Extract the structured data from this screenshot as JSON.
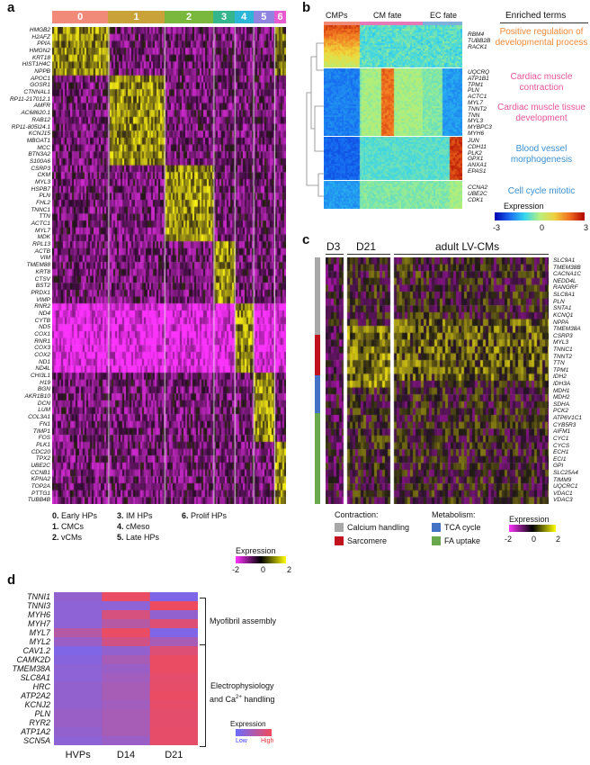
{
  "panels": {
    "a": "a",
    "b": "b",
    "c": "c",
    "d": "d"
  },
  "panel_a": {
    "clusters": [
      {
        "label": "0",
        "color": "#f28a7a"
      },
      {
        "label": "1",
        "color": "#c9a23a"
      },
      {
        "label": "2",
        "color": "#79b83c"
      },
      {
        "label": "3",
        "color": "#35b58c"
      },
      {
        "label": "4",
        "color": "#2bb6d8"
      },
      {
        "label": "5",
        "color": "#8f85e0"
      },
      {
        "label": "6",
        "color": "#e85ad0"
      }
    ],
    "genes": [
      "HMGB2",
      "H2AFZ",
      "PPIA",
      "HMGN2",
      "KRT18",
      "HIST1H4C",
      "NPPB",
      "APOC1",
      "GOSR1",
      "CTNNAL1",
      "RP11-217012.1",
      "AMFR",
      "AC68620.1",
      "RAB12",
      "RP11-805I24.1",
      "KCNJ15",
      "MBOAT1",
      "MCC",
      "BTN3A2",
      "S100A6",
      "CSRP3",
      "CKM",
      "MYL3",
      "HSPB7",
      "PLN",
      "FHL2",
      "TNNC1",
      "TTN",
      "ACTC1",
      "MYL7",
      "MDK",
      "RPL13",
      "ACTB",
      "VIM",
      "TMEM88",
      "KRT8",
      "CTSV",
      "BST2",
      "PRDX1",
      "VIMP",
      "RNR2",
      "ND4",
      "CYTB",
      "ND5",
      "COX1",
      "RNR1",
      "COX3",
      "COX2",
      "ND1",
      "ND4L",
      "CHI3L1",
      "H19",
      "BGN",
      "AKR1B10",
      "DCN",
      "LUM",
      "COL3A1",
      "FN1",
      "TIMP1",
      "FOS",
      "PLK1",
      "CDC20",
      "TPX2",
      "UBE2C",
      "CCNB1",
      "KPNA2",
      "TOP2A",
      "PTTG1",
      "TUBB4B"
    ],
    "legend": [
      [
        "0.",
        "Early HPs"
      ],
      [
        "1.",
        "CMCs"
      ],
      [
        "2.",
        "vCMs"
      ],
      [
        "3.",
        "IM HPs"
      ],
      [
        "4.",
        "cMeso"
      ],
      [
        "5.",
        "Late HPs"
      ],
      [
        "6.",
        "Prolif HPs"
      ]
    ],
    "scale_title": "Expression",
    "scale_ticks": [
      "-2",
      "0",
      "2"
    ]
  },
  "panel_b": {
    "col_headers": [
      "CMPs",
      "CM fate",
      "EC fate"
    ],
    "col_colors": [
      "#f08a77",
      "#e879b8",
      "#7fb0dc"
    ],
    "enriched_title": "Enriched terms",
    "gene_groups": [
      [
        "RBM4",
        "TUBB2B",
        "RACK1"
      ],
      [
        "UQCRQ",
        "ATP1B1",
        "TPM1",
        "PLN",
        "ACTC1",
        "MYL7",
        "TNNT2",
        "TNN",
        "MYL3",
        "MYBPC3",
        "MYH6"
      ],
      [
        "JUN",
        "CDH11",
        "PLK2",
        "GPX1",
        "ANXA1",
        "EPAS1"
      ],
      [
        "CCNA2",
        "UBE2C",
        "CDK1"
      ]
    ],
    "terms": [
      {
        "text": "Positive regulation of developmental process",
        "color": "#f08a3a"
      },
      {
        "text": "Cardiac muscle contraction",
        "color": "#e8559a"
      },
      {
        "text": "Cardiac muscle tissue development",
        "color": "#e8559a"
      },
      {
        "text": "Blood vessel morphogenesis",
        "color": "#3a8fd0"
      },
      {
        "text": "Cell cycle mitotic",
        "color": "#3a8fd0"
      }
    ],
    "scale_title": "Expression",
    "scale_ticks": [
      "-3",
      "0",
      "3"
    ]
  },
  "panel_c": {
    "col_headers": [
      "D3",
      "D21",
      "adult LV-CMs"
    ],
    "genes": [
      "SLC9A1",
      "TMEM38B",
      "CACNA1C",
      "NEDD4L",
      "RANGRF",
      "SLC8A1",
      "PLN",
      "SNTA1",
      "KCNQ1",
      "NPPA",
      "TMEM38A",
      "CSRP3",
      "MYL3",
      "TNNC1",
      "TNNT2",
      "TTN",
      "TPM1",
      "IDH2",
      "IDH3A",
      "MDH1",
      "MDH2",
      "SDHA",
      "PCK2",
      "ATP6V1C1",
      "CYB5R3",
      "AIFM1",
      "CYC1",
      "CYCS",
      "ECH1",
      "ECI1",
      "GPI",
      "SLC25A4",
      "TIMM9",
      "UQCRC1",
      "VDAC1",
      "VDAC3"
    ],
    "legend_contraction_title": "Contraction:",
    "legend_metabolism_title": "Metabolism:",
    "legend_items": [
      {
        "label": "Calcium handling",
        "color": "#a8a8a8"
      },
      {
        "label": "Sarcomere",
        "color": "#c0121c"
      },
      {
        "label": "TCA cycle",
        "color": "#4472c4"
      },
      {
        "label": "FA uptake",
        "color": "#6aa84f"
      }
    ],
    "scale_title": "Expression",
    "scale_ticks": [
      "-2",
      "0",
      "2"
    ]
  },
  "panel_d": {
    "genes": [
      "TNNI1",
      "TNNI3",
      "MYH6",
      "MYH7",
      "MYL7",
      "MYL2",
      "CAV1.2",
      "CAMK2D",
      "TMEM38A",
      "SLC8A1",
      "HRC",
      "ATP2A2",
      "KCNJ2",
      "PLN",
      "RYR2",
      "ATP1A2",
      "SCN5A"
    ],
    "columns": [
      "HVPs",
      "D14",
      "D21"
    ],
    "values": [
      [
        0.3,
        0.95,
        0.15
      ],
      [
        0.25,
        0.25,
        0.98
      ],
      [
        0.25,
        0.8,
        0.3
      ],
      [
        0.25,
        0.55,
        0.85
      ],
      [
        0.55,
        0.95,
        0.15
      ],
      [
        0.35,
        0.75,
        0.45
      ],
      [
        0.15,
        0.3,
        0.85
      ],
      [
        0.2,
        0.45,
        0.95
      ],
      [
        0.25,
        0.35,
        0.95
      ],
      [
        0.25,
        0.4,
        0.9
      ],
      [
        0.3,
        0.45,
        0.92
      ],
      [
        0.3,
        0.45,
        0.95
      ],
      [
        0.3,
        0.4,
        0.92
      ],
      [
        0.35,
        0.45,
        0.9
      ],
      [
        0.35,
        0.45,
        0.9
      ],
      [
        0.3,
        0.45,
        0.92
      ],
      [
        0.25,
        0.35,
        0.92
      ]
    ],
    "group1": "Myofibril  assembly",
    "group2_line1": "Electrophysiology",
    "group2_line2": "and Ca",
    "group2_sup": "2+",
    "group2_tail": " handling",
    "legend_title": "Expression",
    "legend_low": "Low",
    "legend_high": "High"
  }
}
